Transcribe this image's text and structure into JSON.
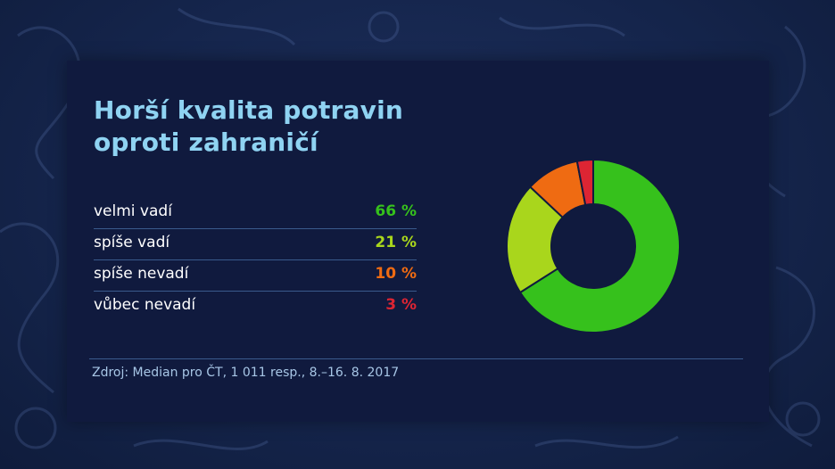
{
  "colors": {
    "title": "#8fd3f2",
    "divider": "#3a5a8c",
    "source_text": "#a7c6e6"
  },
  "chart_data": {
    "type": "pie",
    "variant": "donut",
    "title": "Horší kvalita potravin oproti zahraničí",
    "title_lines": [
      "Horší kvalita potravin",
      "oproti zahraničí"
    ],
    "categories": [
      "velmi vadí",
      "spíše vadí",
      "spíše nevadí",
      "vůbec nevadí"
    ],
    "values": [
      66,
      21,
      10,
      3
    ],
    "value_labels": [
      "66 %",
      "21 %",
      "10 %",
      "3 %"
    ],
    "colors": [
      "#36c11c",
      "#a9d61c",
      "#ef6b12",
      "#dd2533"
    ],
    "legend_position": "left",
    "unit": "%"
  },
  "source": "Zdroj: Median pro ČT, 1 011 resp., 8.–16. 8. 2017"
}
